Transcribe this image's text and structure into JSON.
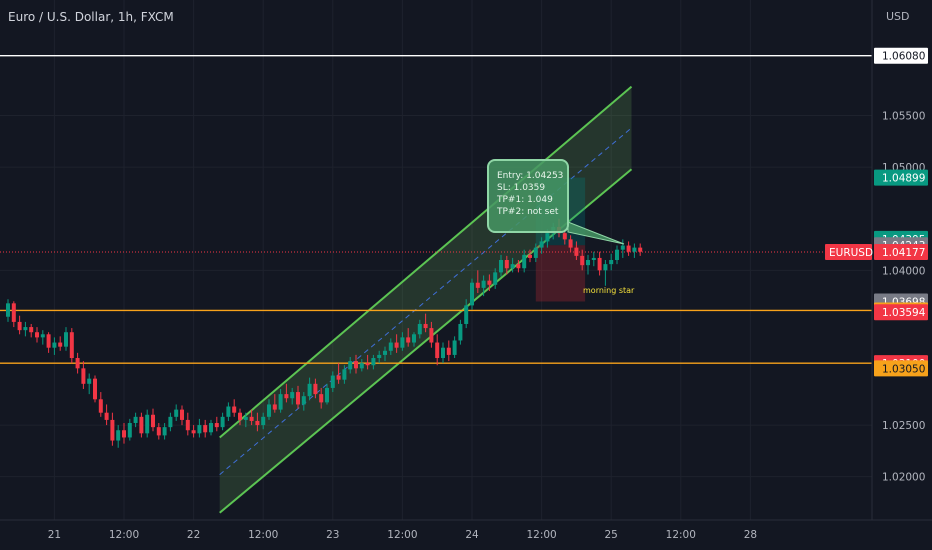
{
  "header": {
    "title": "Euro / U.S. Dollar, 1h, FXCM",
    "currency": "USD"
  },
  "chart_data": {
    "type": "candlestick",
    "symbol": "EURUSD",
    "y_ticks": [
      "1.05500",
      "1.05000",
      "1.04000",
      "1.02500",
      "1.02000"
    ],
    "x_ticks": [
      "21",
      "12:00",
      "22",
      "12:00",
      "23",
      "12:00",
      "24",
      "12:00",
      "25",
      "12:00",
      "28"
    ],
    "ylim": [
      1.0158,
      1.0662
    ],
    "horizontal_lines": [
      {
        "value": 1.0608,
        "color": "#ffffff"
      },
      {
        "value": 1.03611,
        "color": "#f7a21b"
      },
      {
        "value": 1.031,
        "color": "#f7a21b"
      }
    ],
    "price_tags": [
      {
        "label": "1.06080",
        "value": 1.0608,
        "bg": "#ffffff",
        "fg": "#131722"
      },
      {
        "label": "1.04899",
        "value": 1.04899,
        "bg": "#089981",
        "fg": "#ffffff"
      },
      {
        "label": "1.04305",
        "value": 1.04305,
        "bg": "#089981",
        "fg": "#ffffff"
      },
      {
        "label": "1.04243",
        "value": 1.04243,
        "bg": "#787b86",
        "fg": "#ffffff"
      },
      {
        "label": "1.04177",
        "value": 1.04177,
        "bg": "#f23645",
        "fg": "#ffffff"
      },
      {
        "label": "1.03698",
        "value": 1.03698,
        "bg": "#787b86",
        "fg": "#ffffff"
      },
      {
        "label": "1.03611",
        "value": 1.03611,
        "bg": "#f7a21b",
        "fg": "#131722"
      },
      {
        "label": "1.03594",
        "value": 1.03594,
        "bg": "#f23645",
        "fg": "#ffffff"
      },
      {
        "label": "1.03100",
        "value": 1.031,
        "bg": "#f23645",
        "fg": "#ffffff"
      },
      {
        "label": "1.03050",
        "value": 1.0305,
        "bg": "#f7a21b",
        "fg": "#131722"
      }
    ],
    "symbol_tag": {
      "label": "EURUSD",
      "value": 1.04177,
      "bg": "#f23645"
    },
    "last_price": 1.04177,
    "channel": {
      "x_start_hour": 36.5,
      "x_end_hour": 107.5,
      "upper": [
        1.0238,
        1.0578
      ],
      "mid": [
        1.0202,
        1.0538
      ],
      "lower": [
        1.0165,
        1.0498
      ],
      "fill": "rgba(120,200,100,0.18)",
      "line": "#5cc453"
    },
    "position": {
      "x_start_hour": 91,
      "x_end_hour": 99.5,
      "entry": 1.04243,
      "target": 1.04899,
      "stop": 1.03698,
      "profit_fill": "rgba(0,128,128,0.28)",
      "loss_fill": "rgba(180,40,50,0.32)"
    },
    "candles": [
      [
        1.0355,
        1.0372,
        1.035,
        1.0368
      ],
      [
        1.0368,
        1.037,
        1.0345,
        1.035
      ],
      [
        1.035,
        1.0356,
        1.0338,
        1.0342
      ],
      [
        1.0342,
        1.035,
        1.0336,
        1.0345
      ],
      [
        1.0345,
        1.0348,
        1.0335,
        1.034
      ],
      [
        1.034,
        1.0345,
        1.033,
        1.0335
      ],
      [
        1.0335,
        1.0342,
        1.0328,
        1.0338
      ],
      [
        1.0338,
        1.034,
        1.032,
        1.0325
      ],
      [
        1.0325,
        1.0335,
        1.0318,
        1.033
      ],
      [
        1.033,
        1.0336,
        1.0322,
        1.0326
      ],
      [
        1.0326,
        1.0345,
        1.0322,
        1.034
      ],
      [
        1.034,
        1.0344,
        1.031,
        1.0315
      ],
      [
        1.0315,
        1.032,
        1.03,
        1.0305
      ],
      [
        1.0305,
        1.0312,
        1.0285,
        1.029
      ],
      [
        1.029,
        1.03,
        1.028,
        1.0295
      ],
      [
        1.0295,
        1.0298,
        1.0272,
        1.0275
      ],
      [
        1.0275,
        1.0282,
        1.0258,
        1.0262
      ],
      [
        1.0262,
        1.027,
        1.025,
        1.0255
      ],
      [
        1.0255,
        1.0262,
        1.023,
        1.0235
      ],
      [
        1.0235,
        1.025,
        1.0228,
        1.0245
      ],
      [
        1.0245,
        1.0252,
        1.0232,
        1.0238
      ],
      [
        1.0238,
        1.0256,
        1.0235,
        1.0252
      ],
      [
        1.0252,
        1.0262,
        1.0248,
        1.0258
      ],
      [
        1.0258,
        1.0262,
        1.0238,
        1.0242
      ],
      [
        1.0242,
        1.0265,
        1.0238,
        1.026
      ],
      [
        1.026,
        1.0266,
        1.0244,
        1.0248
      ],
      [
        1.0248,
        1.0252,
        1.0236,
        1.024
      ],
      [
        1.024,
        1.0252,
        1.0236,
        1.0248
      ],
      [
        1.0248,
        1.0262,
        1.0244,
        1.0258
      ],
      [
        1.0258,
        1.027,
        1.0254,
        1.0265
      ],
      [
        1.0265,
        1.0269,
        1.025,
        1.0255
      ],
      [
        1.0255,
        1.0262,
        1.024,
        1.0245
      ],
      [
        1.0245,
        1.025,
        1.0238,
        1.0242
      ],
      [
        1.0242,
        1.0256,
        1.0238,
        1.025
      ],
      [
        1.025,
        1.0255,
        1.0238,
        1.0243
      ],
      [
        1.0243,
        1.0255,
        1.024,
        1.0252
      ],
      [
        1.0252,
        1.0258,
        1.0244,
        1.0248
      ],
      [
        1.0248,
        1.0262,
        1.0245,
        1.0258
      ],
      [
        1.0258,
        1.0272,
        1.0254,
        1.0268
      ],
      [
        1.0268,
        1.0275,
        1.0258,
        1.0262
      ],
      [
        1.0262,
        1.0266,
        1.025,
        1.0255
      ],
      [
        1.0255,
        1.0262,
        1.0248,
        1.0258
      ],
      [
        1.0258,
        1.0265,
        1.025,
        1.0254
      ],
      [
        1.0254,
        1.0262,
        1.0244,
        1.025
      ],
      [
        1.025,
        1.0262,
        1.0246,
        1.0258
      ],
      [
        1.0258,
        1.0275,
        1.0255,
        1.027
      ],
      [
        1.027,
        1.028,
        1.0262,
        1.0265
      ],
      [
        1.0265,
        1.0285,
        1.0262,
        1.028
      ],
      [
        1.028,
        1.029,
        1.0272,
        1.0276
      ],
      [
        1.0276,
        1.0286,
        1.027,
        1.0282
      ],
      [
        1.0282,
        1.0288,
        1.0266,
        1.027
      ],
      [
        1.027,
        1.0282,
        1.0264,
        1.0278
      ],
      [
        1.0278,
        1.0296,
        1.0274,
        1.029
      ],
      [
        1.029,
        1.0295,
        1.0276,
        1.028
      ],
      [
        1.028,
        1.0286,
        1.0266,
        1.0272
      ],
      [
        1.0272,
        1.029,
        1.027,
        1.0286
      ],
      [
        1.0286,
        1.0302,
        1.0282,
        1.0298
      ],
      [
        1.0298,
        1.031,
        1.029,
        1.0294
      ],
      [
        1.0294,
        1.0308,
        1.029,
        1.0304
      ],
      [
        1.0304,
        1.0316,
        1.03,
        1.0312
      ],
      [
        1.0312,
        1.0318,
        1.03,
        1.0305
      ],
      [
        1.0305,
        1.0314,
        1.0302,
        1.031
      ],
      [
        1.031,
        1.0318,
        1.0304,
        1.0308
      ],
      [
        1.0308,
        1.0318,
        1.0304,
        1.0315
      ],
      [
        1.0315,
        1.0322,
        1.031,
        1.0318
      ],
      [
        1.0318,
        1.0326,
        1.0312,
        1.0322
      ],
      [
        1.0322,
        1.0334,
        1.0318,
        1.033
      ],
      [
        1.033,
        1.0338,
        1.032,
        1.0325
      ],
      [
        1.0325,
        1.034,
        1.0322,
        1.0335
      ],
      [
        1.0335,
        1.0344,
        1.0326,
        1.033
      ],
      [
        1.033,
        1.034,
        1.0326,
        1.0338
      ],
      [
        1.0338,
        1.0352,
        1.0334,
        1.0348
      ],
      [
        1.0348,
        1.0358,
        1.034,
        1.0344
      ],
      [
        1.0344,
        1.035,
        1.0325,
        1.033
      ],
      [
        1.033,
        1.0338,
        1.0308,
        1.0315
      ],
      [
        1.0315,
        1.033,
        1.031,
        1.0325
      ],
      [
        1.0325,
        1.0332,
        1.0312,
        1.0318
      ],
      [
        1.0318,
        1.0336,
        1.0315,
        1.0332
      ],
      [
        1.0332,
        1.0352,
        1.0328,
        1.0348
      ],
      [
        1.0348,
        1.0372,
        1.0344,
        1.0366
      ],
      [
        1.0366,
        1.0392,
        1.0362,
        1.0388
      ],
      [
        1.0388,
        1.04,
        1.0378,
        1.0383
      ],
      [
        1.0383,
        1.0395,
        1.0375,
        1.039
      ],
      [
        1.039,
        1.0396,
        1.038,
        1.0386
      ],
      [
        1.0386,
        1.0402,
        1.0382,
        1.0398
      ],
      [
        1.0398,
        1.0415,
        1.0394,
        1.041
      ],
      [
        1.041,
        1.0414,
        1.0396,
        1.0402
      ],
      [
        1.0402,
        1.0412,
        1.0398,
        1.0406
      ],
      [
        1.0406,
        1.041,
        1.0398,
        1.0402
      ],
      [
        1.0402,
        1.042,
        1.0398,
        1.0415
      ],
      [
        1.0415,
        1.042,
        1.0408,
        1.0412
      ],
      [
        1.0412,
        1.0426,
        1.0408,
        1.0422
      ],
      [
        1.0422,
        1.0432,
        1.0416,
        1.0428
      ],
      [
        1.0428,
        1.044,
        1.0422,
        1.0436
      ],
      [
        1.0436,
        1.0446,
        1.043,
        1.0442
      ],
      [
        1.0442,
        1.045,
        1.0432,
        1.0436
      ],
      [
        1.0436,
        1.044,
        1.0425,
        1.043
      ],
      [
        1.043,
        1.0434,
        1.0418,
        1.0422
      ],
      [
        1.0422,
        1.0428,
        1.041,
        1.0414
      ],
      [
        1.0414,
        1.042,
        1.04,
        1.0405
      ],
      [
        1.0405,
        1.0415,
        1.0396,
        1.041
      ],
      [
        1.041,
        1.0418,
        1.0404,
        1.0412
      ],
      [
        1.0412,
        1.0418,
        1.0395,
        1.04
      ],
      [
        1.04,
        1.041,
        1.0385,
        1.0406
      ],
      [
        1.0406,
        1.0416,
        1.04,
        1.041
      ],
      [
        1.041,
        1.0424,
        1.0406,
        1.042
      ],
      [
        1.042,
        1.043,
        1.0412,
        1.0424
      ],
      [
        1.0424,
        1.0428,
        1.0414,
        1.0418
      ],
      [
        1.0418,
        1.0426,
        1.0412,
        1.0422
      ],
      [
        1.0422,
        1.0426,
        1.0414,
        1.0418
      ]
    ]
  },
  "annotations": {
    "trade_note": [
      "Entry: 1.04253",
      "SL: 1.0359",
      "TP#1: 1.049",
      "TP#2: not set"
    ],
    "pattern_label": "morning star"
  }
}
